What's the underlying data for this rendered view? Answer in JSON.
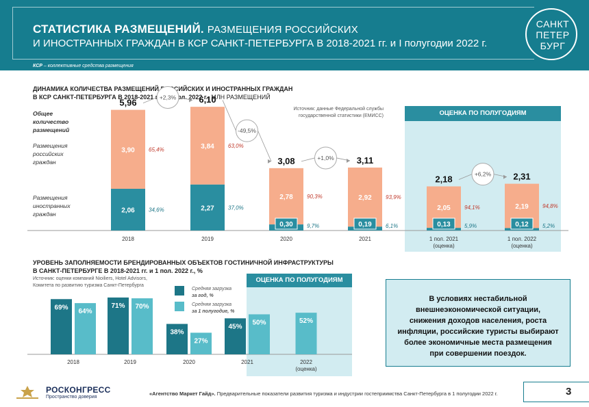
{
  "header": {
    "title_bold": "СТАТИСТИКА РАЗМЕЩЕНИЙ.",
    "title_rest": "РАЗМЕЩЕНИЯ РОССИЙСКИХ",
    "title_line2": "И ИНОСТРАННЫХ ГРАЖДАН В КСР САНКТ-ПЕТЕРБУРГА В 2018-2021 гг. и I полугодии 2022 г.",
    "note_abbr": "КСР",
    "note_text": " – коллективные средства размещения",
    "logo_lines": [
      "САНКТ",
      "ПЕТЕР",
      "БУРГ"
    ]
  },
  "chart1": {
    "title_line1": "ДИНАМИКА КОЛИЧЕСТВА РАЗМЕЩЕНИЙ РОССИЙСКИХ И ИНОСТРАННЫХ ГРАЖДАН",
    "title_line2_bold": "В КСР САНКТ-ПЕТЕРБУРГА В 2018-2021 гг. и 1 пол. 2022 г.,",
    "title_line2_rest": " МЛН РАЗМЕЩЕНИЙ",
    "source_line1": "Источник: данные Федеральной службы",
    "source_line2": "государственной статистики (ЕМИСС)",
    "highlight_label": "ОЦЕНКА ПО ПОЛУГОДИЯМ",
    "label_total": [
      "Общее",
      "количество",
      "размещений"
    ],
    "label_russian": [
      "Размещения",
      "российских",
      "граждан"
    ],
    "label_foreign": [
      "Размещения",
      "иностранных",
      "граждан"
    ]
  },
  "chart2": {
    "title_line1": "УРОВЕНЬ ЗАПОЛНЯЕМОСТИ БРЕНДИРОВАННЫХ ОБЪЕКТОВ ГОСТИНИЧНОЙ ИНФРАСТРУКТУРЫ",
    "title_line2": "В САНКТ-ПЕТЕРБУРГЕ В 2018-2021 гг. и 1 пол. 2022 г., %",
    "source_line1": "Источник: оценки компаний Nioiliers, Hotel Advisors,",
    "source_line2": "Комитета по развитию туризма Санкт-Петербурга",
    "highlight_label": "ОЦЕНКА ПО ПОЛУГОДИЯМ",
    "legend_year_1": "Средняя загрузка",
    "legend_year_2": "за год, %",
    "legend_half_1": "Средняя загрузка",
    "legend_half_2": "за 1 полугодие, %"
  },
  "info_box": {
    "text": "В условиях нестабильной внешнеэкономической ситуации, снижения доходов населения, роста инфляции, российские туристы выбирают более экономичные места размещения при совершении поездок."
  },
  "footer": {
    "logo_text": "РОСКОНГРЕСС",
    "logo_sub": "Пространство доверия",
    "text_bold": "«Агентство Маркет Гайд».",
    "text_rest": " Предварительные  показатели развития туризма и индустрии гостеприимства Санкт-Петербурга в 1 полугодии 2022 г.",
    "page": "3"
  },
  "chart_data": [
    {
      "type": "bar",
      "stacked": true,
      "title": "ДИНАМИКА КОЛИЧЕСТВА РАЗМЕЩЕНИЙ РОССИЙСКИХ И ИНОСТРАННЫХ ГРАЖДАН В КСР САНКТ-ПЕТЕРБУРГА В 2018-2021 гг. и 1 пол. 2022 г., МЛН РАЗМЕЩЕНИЙ",
      "categories": [
        "2018",
        "2019",
        "2020",
        "2021",
        "1 пол. 2021|(оценка)",
        "1 пол. 2022|(оценка)"
      ],
      "series": [
        {
          "name": "Размещения иностранных граждан",
          "color": "#2a8ea0",
          "values": [
            2.06,
            2.27,
            0.3,
            0.19,
            0.13,
            0.12
          ],
          "labels": [
            "2,06",
            "2,27",
            "0,30",
            "0,19",
            "0,13",
            "0,12"
          ],
          "shares": [
            "34,6%",
            "37,0%",
            "9,7%",
            "6,1%",
            "5,9%",
            "5,2%"
          ]
        },
        {
          "name": "Размещения российских граждан",
          "color": "#f6ad8c",
          "values": [
            3.9,
            3.84,
            2.78,
            2.92,
            2.05,
            2.19
          ],
          "labels": [
            "3,90",
            "3,84",
            "2,78",
            "2,92",
            "2,05",
            "2,19"
          ],
          "shares": [
            "65,4%",
            "63,0%",
            "90,3%",
            "93,9%",
            "94,1%",
            "94,8%"
          ]
        }
      ],
      "totals": [
        "5,96",
        "6,10",
        "3,08",
        "3,11",
        "2,18",
        "2,31"
      ],
      "total_values": [
        5.96,
        6.1,
        3.08,
        3.11,
        2.18,
        2.31
      ],
      "changes": [
        {
          "from": 0,
          "to": 1,
          "label": "+2,3%"
        },
        {
          "from": 1,
          "to": 2,
          "label": "-49,5%"
        },
        {
          "from": 2,
          "to": 3,
          "label": "+1,0%"
        },
        {
          "from": 4,
          "to": 5,
          "label": "+6,2%"
        }
      ],
      "highlight": "1 пол. 2021 – 1 пол. 2022",
      "ylim": [
        0,
        7
      ]
    },
    {
      "type": "bar",
      "title": "УРОВЕНЬ ЗАПОЛНЯЕМОСТИ БРЕНДИРОВАННЫХ ОБЪЕКТОВ ГОСТИНИЧНОЙ ИНФРАСТРУКТУРЫ В САНКТ-ПЕТЕРБУРГЕ В 2018-2021 гг. и 1 пол. 2022 г., %",
      "categories": [
        "2018",
        "2019",
        "2020",
        "2021",
        "2022|(оценка)"
      ],
      "series": [
        {
          "name": "Средняя загрузка за год, %",
          "color": "#1d7687",
          "values": [
            69,
            71,
            38,
            45,
            null
          ],
          "labels": [
            "69%",
            "71%",
            "38%",
            "45%",
            null
          ]
        },
        {
          "name": "Средняя загрузка за 1 полугодие, %",
          "color": "#58bcc9",
          "values": [
            64,
            70,
            27,
            50,
            52
          ],
          "labels": [
            "64%",
            "70%",
            "27%",
            "50%",
            "52%"
          ]
        }
      ],
      "ylim": [
        0,
        100
      ]
    }
  ]
}
